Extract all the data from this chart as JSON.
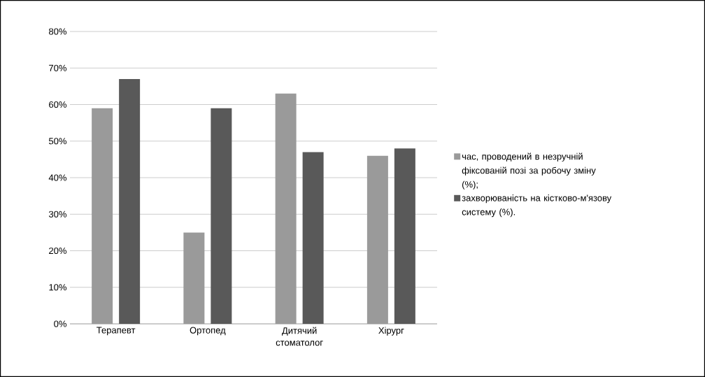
{
  "chart_data": {
    "type": "bar",
    "categories": [
      "Терапевт",
      "Ортопед",
      "Дитячий стоматолог",
      "Хірург"
    ],
    "series": [
      {
        "name": "час, проводений в незручній фіксованій позі за робочу зміну (%);",
        "color": "#9a9a9a",
        "values": [
          59,
          25,
          63,
          46
        ]
      },
      {
        "name": "захворюваність на кістково-м'язову систему (%).",
        "color": "#595959",
        "values": [
          67,
          59,
          47,
          48
        ]
      }
    ],
    "ylim": [
      0,
      80
    ],
    "yticks": [
      {
        "value": 0,
        "label": "0%"
      },
      {
        "value": 10,
        "label": "10%"
      },
      {
        "value": 20,
        "label": "20%"
      },
      {
        "value": 30,
        "label": "30%"
      },
      {
        "value": 40,
        "label": "40%"
      },
      {
        "value": 50,
        "label": "50%"
      },
      {
        "value": 60,
        "label": "60%"
      },
      {
        "value": 70,
        "label": "70%"
      },
      {
        "value": 80,
        "label": "80%"
      }
    ],
    "grid": "y",
    "legend": "right"
  }
}
